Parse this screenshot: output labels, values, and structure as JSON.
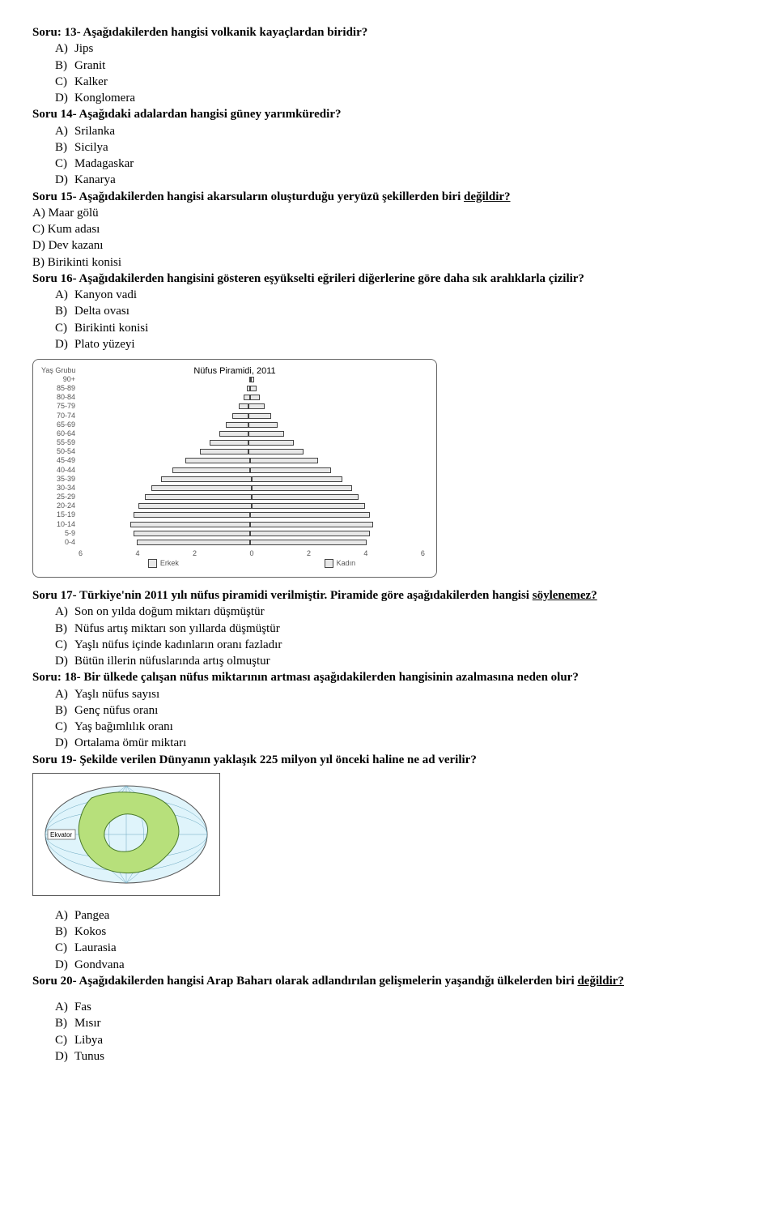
{
  "q13": {
    "title_pre": "Soru: 13- ",
    "title": "Aşağıdakilerden hangisi volkanik kayaçlardan biridir?",
    "a": "Jips",
    "b": "Granit",
    "c": "Kalker",
    "d": "Konglomera"
  },
  "q14": {
    "title_pre": "Soru 14- ",
    "title": "Aşağıdaki adalardan hangisi güney yarımküredir?",
    "a": "Srilanka",
    "b": "Sicilya",
    "c": "Madagaskar",
    "d": "Kanarya"
  },
  "q15": {
    "title_pre": "Soru 15- ",
    "title_before": "Aşağıdakilerden hangisi akarsuların oluşturduğu yeryüzü şekillerden biri ",
    "title_ul": "değildir?",
    "a": "A) Maar gölü",
    "c": "C) Kum adası",
    "d": "D) Dev kazanı",
    "b": "B) Birikinti konisi"
  },
  "q16": {
    "title_pre": "Soru 16- ",
    "title": "Aşağıdakilerden hangisini gösteren eşyükselti eğrileri diğerlerine göre daha sık aralıklarla çizilir?",
    "a": "Kanyon vadi",
    "b": "Delta ovası",
    "c": "Birikinti konisi",
    "d": "Plato yüzeyi"
  },
  "pyramid": {
    "title": "Nüfus Piramidi, 2011",
    "age_label_heading": "Yaş Grubu",
    "age_labels": [
      "90+",
      "85-89",
      "80-84",
      "75-79",
      "70-74",
      "65-69",
      "60-64",
      "55-59",
      "50-54",
      "45-49",
      "40-44",
      "35-39",
      "30-34",
      "25-29",
      "20-24",
      "15-19",
      "10-14",
      "5-9",
      "0-4"
    ],
    "left_pct": [
      1,
      2,
      4,
      6,
      10,
      14,
      18,
      24,
      30,
      40,
      48,
      56,
      62,
      66,
      70,
      72,
      74,
      72,
      70
    ],
    "right_pct": [
      2,
      4,
      6,
      10,
      14,
      18,
      22,
      28,
      34,
      42,
      50,
      56,
      62,
      66,
      70,
      74,
      76,
      74,
      72
    ],
    "x_ticks": [
      "6",
      "4",
      "2",
      "0",
      "2",
      "4",
      "6"
    ],
    "legend_left": "Erkek",
    "legend_right": "Kadın",
    "bar_fill": "#e8e8e8",
    "bar_border": "#444444"
  },
  "q17": {
    "title_pre": "Soru 17- ",
    "title_before": "Türkiye'nin 2011 yılı nüfus piramidi verilmiştir. Piramide göre aşağıdakilerden hangisi ",
    "title_ul": "söylenemez?",
    "a": "Son on yılda doğum miktarı düşmüştür",
    "b": "Nüfus artış miktarı son yıllarda düşmüştür",
    "c": "Yaşlı nüfus içinde kadınların oranı fazladır",
    "d": "Bütün illerin nüfuslarında artış olmuştur"
  },
  "q18": {
    "title_pre": "Soru: 18- ",
    "title": "Bir ülkede çalışan nüfus miktarının artması aşağıdakilerden hangisinin azalmasına neden olur?",
    "a": "Yaşlı nüfus sayısı",
    "b": "Genç nüfus oranı",
    "c": "Yaş bağımlılık oranı",
    "d": "Ortalama ömür miktarı"
  },
  "q19": {
    "title_pre": "Soru 19- ",
    "title": "Şekilde verilen Dünyanın yaklaşık 225 milyon yıl önceki haline ne ad verilir?",
    "a": "Pangea",
    "b": "Kokos",
    "c": "Laurasia",
    "d": "Gondvana"
  },
  "map": {
    "equator_label": "Ekvator",
    "ocean_fill": "#dff4fb",
    "land_fill": "#b7e07b",
    "land_stroke": "#4a7a2b",
    "border": "#555555",
    "grid": "#6aa7bf"
  },
  "q20": {
    "title_pre": "Soru 20-  ",
    "title_before": "Aşağıdakilerden hangisi Arap Baharı olarak adlandırılan gelişmelerin yaşandığı ülkelerden biri ",
    "title_ul": "değildir?",
    "a": "Fas",
    "b": "Mısır",
    "c": "Libya",
    "d": "Tunus"
  },
  "markers": {
    "a": "A)",
    "b": "B)",
    "c": "C)",
    "d": "D)"
  }
}
